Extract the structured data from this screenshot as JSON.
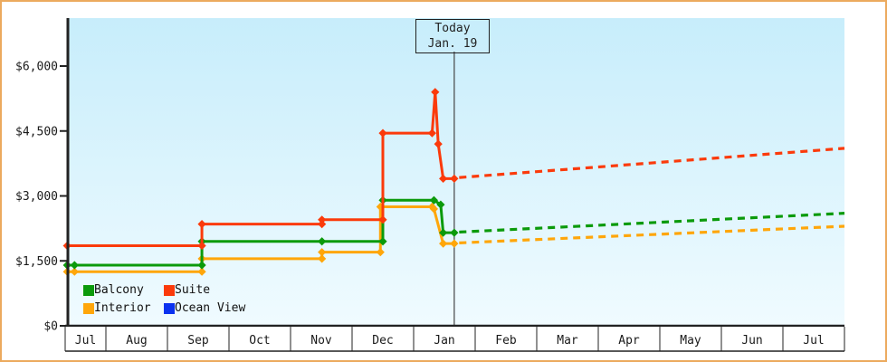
{
  "window": {
    "border_color": "#ecaa5e",
    "plot_bg_top": "#c7edfb",
    "plot_bg_bottom": "#f0fbff",
    "axis_color": "#222222",
    "today_line_color": "#444444"
  },
  "chart_data": {
    "type": "line",
    "title": "",
    "description": "Cabin price history by category (step lines) with dotted price forecast after today marker",
    "today_box": {
      "line1": "Today",
      "line2": "Jan. 19"
    },
    "y_axis": {
      "tick_labels": [
        "$0",
        "$1,500",
        "$3,000",
        "$4,500",
        "$6,000"
      ],
      "tick_values": [
        0,
        1500,
        3000,
        4500,
        6000
      ],
      "range": [
        0,
        7150
      ],
      "grid": "off"
    },
    "x_axis": {
      "month_labels": [
        "Jul",
        "Aug",
        "Sep",
        "Oct",
        "Nov",
        "Dec",
        "Jan",
        "Feb",
        "Mar",
        "Apr",
        "May",
        "Jun",
        "Jul"
      ]
    },
    "today_month_position": 6.66,
    "series": [
      {
        "name": "Interior",
        "color": "#ffa60a",
        "solid_points": [
          [
            0.37,
            1250
          ],
          [
            2.56,
            1250
          ],
          [
            2.56,
            1550
          ],
          [
            4.51,
            1550
          ],
          [
            4.51,
            1700
          ],
          [
            5.46,
            1700
          ],
          [
            5.46,
            2750
          ],
          [
            6.3,
            2750
          ],
          [
            6.33,
            2700
          ],
          [
            6.48,
            1900
          ],
          [
            6.66,
            1900
          ]
        ],
        "marker_points": [
          [
            0.37,
            1250
          ],
          [
            0.49,
            1250
          ],
          [
            2.56,
            1250
          ],
          [
            2.56,
            1550
          ],
          [
            4.51,
            1550
          ],
          [
            4.51,
            1700
          ],
          [
            5.46,
            1700
          ],
          [
            5.46,
            2750
          ],
          [
            6.3,
            2750
          ],
          [
            6.33,
            2700
          ],
          [
            6.48,
            1900
          ],
          [
            6.66,
            1900
          ]
        ],
        "dashed_points": [
          [
            6.74,
            1915
          ],
          [
            13,
            2300
          ]
        ]
      },
      {
        "name": "Balcony",
        "color": "#0b9a0b",
        "solid_points": [
          [
            0.37,
            1400
          ],
          [
            2.56,
            1400
          ],
          [
            2.56,
            1950
          ],
          [
            5.5,
            1950
          ],
          [
            5.5,
            2900
          ],
          [
            6.33,
            2900
          ],
          [
            6.44,
            2800
          ],
          [
            6.48,
            2150
          ],
          [
            6.66,
            2150
          ]
        ],
        "marker_points": [
          [
            0.37,
            1400
          ],
          [
            0.49,
            1400
          ],
          [
            2.56,
            1400
          ],
          [
            2.56,
            1950
          ],
          [
            4.51,
            1950
          ],
          [
            5.5,
            1950
          ],
          [
            5.5,
            2900
          ],
          [
            6.33,
            2900
          ],
          [
            6.44,
            2800
          ],
          [
            6.48,
            2150
          ],
          [
            6.66,
            2150
          ]
        ],
        "dashed_points": [
          [
            6.74,
            2165
          ],
          [
            13,
            2600
          ]
        ]
      },
      {
        "name": "Suite",
        "color": "#fb3a0b",
        "solid_points": [
          [
            0.37,
            1850
          ],
          [
            2.56,
            1850
          ],
          [
            2.56,
            2350
          ],
          [
            4.51,
            2350
          ],
          [
            4.51,
            2450
          ],
          [
            5.5,
            2450
          ],
          [
            5.5,
            4450
          ],
          [
            6.3,
            4450
          ],
          [
            6.35,
            5400
          ],
          [
            6.4,
            4200
          ],
          [
            6.48,
            3400
          ],
          [
            6.66,
            3400
          ]
        ],
        "marker_points": [
          [
            0.37,
            1850
          ],
          [
            2.56,
            1850
          ],
          [
            2.56,
            2350
          ],
          [
            4.51,
            2350
          ],
          [
            4.51,
            2450
          ],
          [
            5.5,
            2450
          ],
          [
            5.5,
            4450
          ],
          [
            6.3,
            4450
          ],
          [
            6.35,
            5400
          ],
          [
            6.4,
            4200
          ],
          [
            6.48,
            3400
          ],
          [
            6.66,
            3400
          ]
        ],
        "dashed_points": [
          [
            6.74,
            3425
          ],
          [
            13,
            4100
          ]
        ]
      },
      {
        "name": "Ocean View",
        "color": "#0a32f0",
        "solid_points": [],
        "marker_points": [],
        "dashed_points": []
      }
    ],
    "legend_order": [
      "Balcony",
      "Suite",
      "Interior",
      "Ocean View"
    ],
    "legend_position": "bottom-left-inside"
  }
}
